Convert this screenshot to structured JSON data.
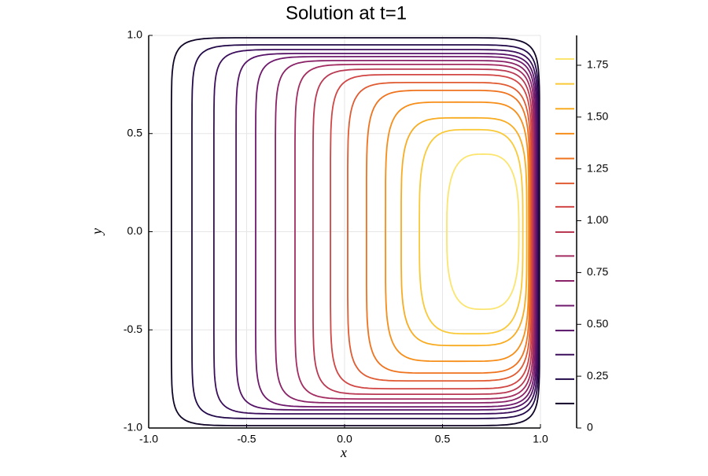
{
  "chart_data": {
    "type": "contour",
    "title": "Solution at t=1",
    "x_label": "x",
    "y_label": "y",
    "xlim": [
      -1,
      1
    ],
    "ylim": [
      -1,
      1
    ],
    "xticks": [
      {
        "value": -1,
        "label": "-1.0"
      },
      {
        "value": -0.5,
        "label": "-0.5"
      },
      {
        "value": 0,
        "label": "0.0"
      },
      {
        "value": 0.5,
        "label": "0.5"
      },
      {
        "value": 1,
        "label": "1.0"
      }
    ],
    "yticks": [
      {
        "value": -1,
        "label": "-1.0"
      },
      {
        "value": -0.5,
        "label": "-0.5"
      },
      {
        "value": 0,
        "label": "0.0"
      },
      {
        "value": 0.5,
        "label": "0.5"
      },
      {
        "value": 1,
        "label": "1.0"
      }
    ],
    "grid": true,
    "colormap": "inferno",
    "clim": [
      0,
      1.894
    ],
    "cticks": [
      0,
      {
        "value": 0.25,
        "label": "0.25"
      },
      {
        "value": 0.5,
        "label": "0.50"
      },
      {
        "value": 0.75,
        "label": "0.75"
      },
      {
        "value": 1,
        "label": "1.00"
      },
      {
        "value": 1.25,
        "label": "1.25"
      },
      {
        "value": 1.5,
        "label": "1.50"
      },
      {
        "value": 1.75,
        "label": "1.75"
      }
    ],
    "contours": [
      {
        "level": 0.118,
        "x": [
          -0.884,
          0.995
        ],
        "y": [
          -0.988,
          0.988
        ]
      },
      {
        "level": 0.236,
        "x": [
          -0.779,
          0.99
        ],
        "y": [
          -0.952,
          0.952
        ]
      },
      {
        "level": 0.354,
        "x": [
          -0.667,
          0.985
        ],
        "y": [
          -0.928,
          0.928
        ]
      },
      {
        "level": 0.47,
        "x": [
          -0.554,
          0.98
        ],
        "y": [
          -0.908,
          0.908
        ]
      },
      {
        "level": 0.59,
        "x": [
          -0.454,
          0.975
        ],
        "y": [
          -0.892,
          0.892
        ]
      },
      {
        "level": 0.71,
        "x": [
          -0.353,
          0.97
        ],
        "y": [
          -0.872,
          0.872
        ]
      },
      {
        "level": 0.83,
        "x": [
          -0.253,
          0.965
        ],
        "y": [
          -0.852,
          0.852
        ]
      },
      {
        "level": 0.945,
        "x": [
          -0.161,
          0.96
        ],
        "y": [
          -0.828,
          0.828
        ]
      },
      {
        "level": 1.067,
        "x": [
          -0.072,
          0.955
        ],
        "y": [
          -0.8,
          0.8
        ]
      },
      {
        "level": 1.18,
        "x": [
          0.016,
          0.95
        ],
        "y": [
          -0.76,
          0.76
        ]
      },
      {
        "level": 1.3,
        "x": [
          0.112,
          0.945
        ],
        "y": [
          -0.72,
          0.72
        ]
      },
      {
        "level": 1.42,
        "x": [
          0.209,
          0.94
        ],
        "y": [
          -0.66,
          0.66
        ]
      },
      {
        "level": 1.54,
        "x": [
          0.289,
          0.93
        ],
        "y": [
          -0.58,
          0.58
        ]
      },
      {
        "level": 1.66,
        "x": [
          0.382,
          0.91
        ],
        "y": [
          -0.52,
          0.52
        ]
      },
      {
        "level": 1.78,
        "x": [
          0.522,
          0.89
        ],
        "y": [
          -0.395,
          0.395
        ]
      }
    ]
  }
}
